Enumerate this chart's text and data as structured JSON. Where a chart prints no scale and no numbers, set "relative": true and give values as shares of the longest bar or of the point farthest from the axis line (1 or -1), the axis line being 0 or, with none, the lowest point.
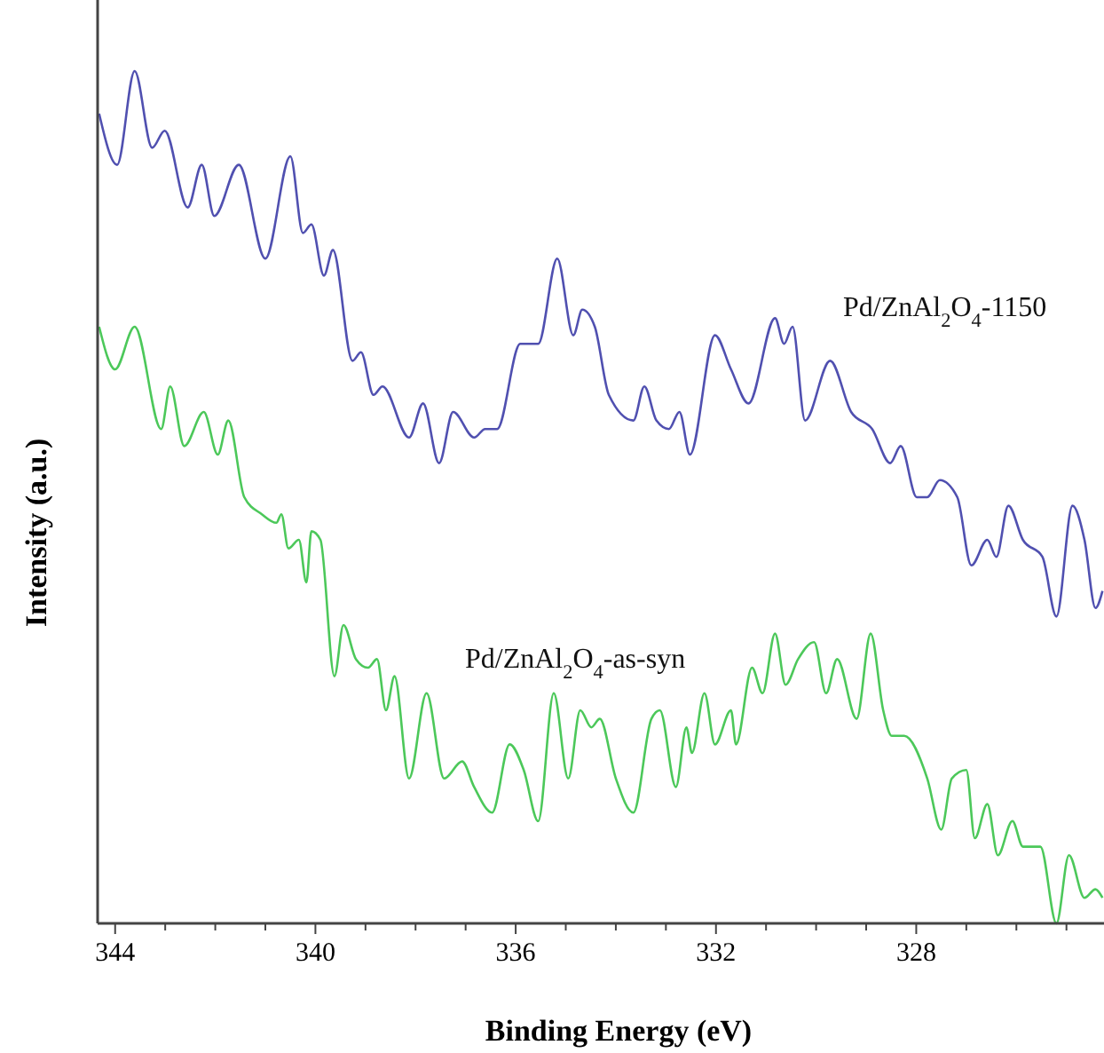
{
  "chart_data": {
    "type": "line",
    "relative": true,
    "xlabel": "Binding Energy (eV)",
    "ylabel": "Intensity (a.u.)",
    "tick_labels": "x",
    "grid": false,
    "line_style": "solid",
    "xlim": [
      344.35,
      324.25
    ],
    "xticks": [
      344,
      {
        "value": 343,
        "label": null
      },
      {
        "value": 342,
        "label": null
      },
      {
        "value": 341,
        "label": null
      },
      340,
      {
        "value": 339,
        "label": null
      },
      {
        "value": 338,
        "label": null
      },
      {
        "value": 337,
        "label": null
      },
      336,
      {
        "value": 335,
        "label": null
      },
      {
        "value": 334,
        "label": null
      },
      {
        "value": 333,
        "label": null
      },
      332,
      {
        "value": 331,
        "label": null
      },
      {
        "value": 330,
        "label": null
      },
      {
        "value": 329,
        "label": null
      },
      328,
      {
        "value": 327,
        "label": null
      },
      {
        "value": 326,
        "label": null
      },
      {
        "value": 325,
        "label": null
      }
    ],
    "series": [
      {
        "name": "Pd/ZnAl$_{2}$O$_{4}$-1150",
        "color": "#5050b0",
        "x": [
          344.32,
          343.96,
          343.61,
          343.26,
          343.01,
          342.55,
          342.27,
          342.02,
          341.53,
          341.0,
          340.5,
          340.25,
          340.08,
          339.83,
          339.65,
          339.26,
          339.09,
          338.84,
          338.66,
          338.13,
          337.85,
          337.53,
          337.25,
          336.83,
          336.61,
          336.37,
          335.91,
          335.55,
          335.17,
          334.85,
          334.67,
          334.42,
          334.14,
          333.65,
          333.43,
          333.19,
          332.94,
          332.73,
          332.52,
          332.02,
          331.7,
          331.35,
          330.82,
          330.64,
          330.47,
          330.22,
          329.72,
          329.3,
          328.88,
          328.52,
          328.31,
          327.99,
          327.78,
          327.53,
          327.18,
          326.9,
          326.58,
          326.4,
          326.16,
          325.87,
          325.48,
          325.2,
          324.88,
          324.64,
          324.42,
          324.28
        ],
        "values": [
          0.95,
          0.89,
          1.0,
          0.91,
          0.93,
          0.84,
          0.89,
          0.83,
          0.89,
          0.78,
          0.9,
          0.81,
          0.82,
          0.76,
          0.79,
          0.66,
          0.67,
          0.62,
          0.63,
          0.57,
          0.61,
          0.54,
          0.6,
          0.57,
          0.58,
          0.58,
          0.68,
          0.68,
          0.78,
          0.69,
          0.72,
          0.7,
          0.62,
          0.59,
          0.63,
          0.59,
          0.58,
          0.6,
          0.55,
          0.69,
          0.65,
          0.61,
          0.71,
          0.68,
          0.7,
          0.59,
          0.66,
          0.6,
          0.58,
          0.54,
          0.56,
          0.5,
          0.5,
          0.52,
          0.5,
          0.42,
          0.45,
          0.43,
          0.49,
          0.45,
          0.43,
          0.36,
          0.49,
          0.45,
          0.37,
          0.39
        ]
      },
      {
        "name": "Pd/ZnAl$_{2}$O$_{4}$-as-syn",
        "color": "#4cc85a",
        "x": [
          344.32,
          344.0,
          343.61,
          343.08,
          342.9,
          342.62,
          342.23,
          341.95,
          341.74,
          341.42,
          341.07,
          340.78,
          340.68,
          340.54,
          340.33,
          340.18,
          340.08,
          339.9,
          339.62,
          339.44,
          339.19,
          338.95,
          338.77,
          338.59,
          338.42,
          338.13,
          337.78,
          337.43,
          337.07,
          336.83,
          336.47,
          336.12,
          335.84,
          335.55,
          335.24,
          334.95,
          334.71,
          334.49,
          334.32,
          334.0,
          333.65,
          333.29,
          333.12,
          332.8,
          332.59,
          332.48,
          332.23,
          332.02,
          331.7,
          331.6,
          331.28,
          331.07,
          330.82,
          330.61,
          330.36,
          330.04,
          329.8,
          329.58,
          329.19,
          328.91,
          328.66,
          328.49,
          328.24,
          327.78,
          327.5,
          327.29,
          327.0,
          326.83,
          326.58,
          326.37,
          326.08,
          325.87,
          325.52,
          325.2,
          324.95,
          324.64,
          324.42,
          324.28
        ],
        "values": [
          0.7,
          0.65,
          0.7,
          0.58,
          0.63,
          0.56,
          0.6,
          0.55,
          0.59,
          0.5,
          0.48,
          0.47,
          0.48,
          0.44,
          0.45,
          0.4,
          0.46,
          0.45,
          0.29,
          0.35,
          0.31,
          0.3,
          0.31,
          0.25,
          0.29,
          0.17,
          0.27,
          0.17,
          0.19,
          0.16,
          0.13,
          0.21,
          0.18,
          0.12,
          0.27,
          0.17,
          0.25,
          0.23,
          0.24,
          0.17,
          0.13,
          0.24,
          0.25,
          0.16,
          0.23,
          0.2,
          0.27,
          0.21,
          0.25,
          0.21,
          0.3,
          0.27,
          0.34,
          0.28,
          0.31,
          0.33,
          0.27,
          0.31,
          0.24,
          0.34,
          0.25,
          0.22,
          0.22,
          0.17,
          0.11,
          0.17,
          0.18,
          0.1,
          0.14,
          0.08,
          0.12,
          0.09,
          0.09,
          0.0,
          0.08,
          0.03,
          0.04,
          0.03
        ]
      }
    ]
  }
}
